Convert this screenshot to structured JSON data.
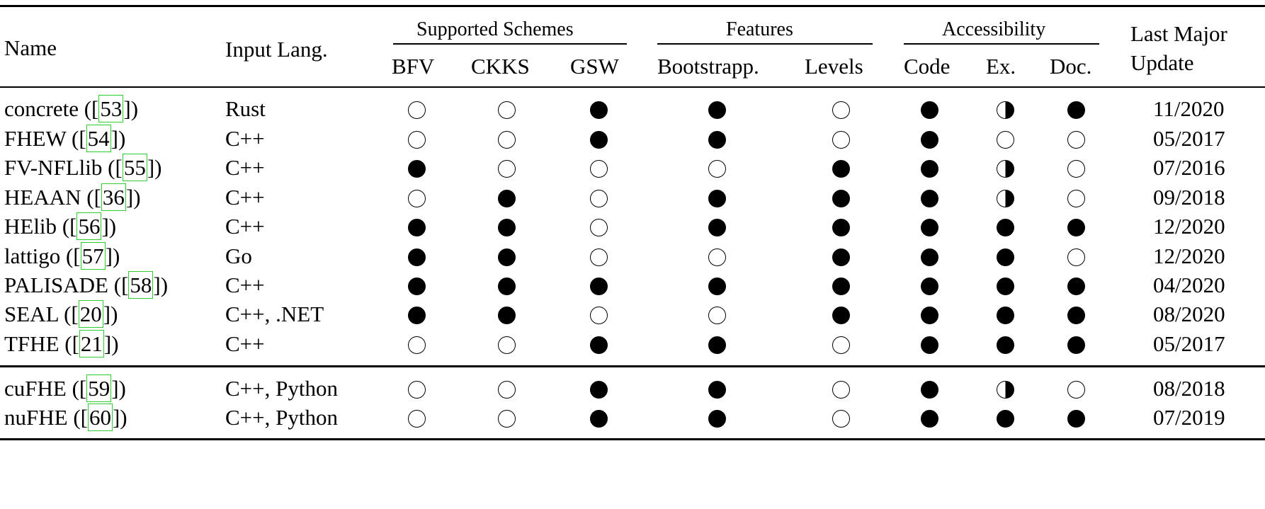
{
  "header": {
    "name": "Name",
    "input_lang": "Input Lang.",
    "groups": [
      "Supported Schemes",
      "Features",
      "Accessibility"
    ],
    "sub": [
      "BFV",
      "CKKS",
      "GSW",
      "Bootstrapp.",
      "Levels",
      "Code",
      "Ex.",
      "Doc."
    ],
    "last_major_1": "Last Major",
    "last_major_2": "Update"
  },
  "rows": [
    {
      "name": "concrete",
      "ref": "53",
      "lang": "Rust",
      "marks": [
        "empty",
        "empty",
        "full",
        "full",
        "empty",
        "full",
        "half",
        "full"
      ],
      "update": "11/2020"
    },
    {
      "name": "FHEW",
      "ref": "54",
      "lang": "C++",
      "marks": [
        "empty",
        "empty",
        "full",
        "full",
        "empty",
        "full",
        "empty",
        "empty"
      ],
      "update": "05/2017"
    },
    {
      "name": "FV-NFLlib",
      "ref": "55",
      "lang": "C++",
      "marks": [
        "full",
        "empty",
        "empty",
        "empty",
        "full",
        "full",
        "half",
        "empty"
      ],
      "update": "07/2016"
    },
    {
      "name": "HEAAN",
      "ref": "36",
      "lang": "C++",
      "marks": [
        "empty",
        "full",
        "empty",
        "full",
        "full",
        "full",
        "half",
        "empty"
      ],
      "update": "09/2018"
    },
    {
      "name": "HElib",
      "ref": "56",
      "lang": "C++",
      "marks": [
        "full",
        "full",
        "empty",
        "full",
        "full",
        "full",
        "full",
        "full"
      ],
      "update": "12/2020"
    },
    {
      "name": "lattigo",
      "ref": "57",
      "lang": "Go",
      "marks": [
        "full",
        "full",
        "empty",
        "empty",
        "full",
        "full",
        "full",
        "empty"
      ],
      "update": "12/2020"
    },
    {
      "name": "PALISADE",
      "ref": "58",
      "lang": "C++",
      "marks": [
        "full",
        "full",
        "full",
        "full",
        "full",
        "full",
        "full",
        "full"
      ],
      "update": "04/2020"
    },
    {
      "name": "SEAL",
      "ref": "20",
      "lang": "C++, .NET",
      "marks": [
        "full",
        "full",
        "empty",
        "empty",
        "full",
        "full",
        "full",
        "full"
      ],
      "update": "08/2020"
    },
    {
      "name": "TFHE",
      "ref": "21",
      "lang": "C++",
      "marks": [
        "empty",
        "empty",
        "full",
        "full",
        "empty",
        "full",
        "full",
        "full"
      ],
      "update": "05/2017"
    },
    {
      "name": "cuFHE",
      "ref": "59",
      "lang": "C++, Python",
      "marks": [
        "empty",
        "empty",
        "full",
        "full",
        "empty",
        "full",
        "half",
        "empty"
      ],
      "update": "08/2018"
    },
    {
      "name": "nuFHE",
      "ref": "60",
      "lang": "C++, Python",
      "marks": [
        "empty",
        "empty",
        "full",
        "full",
        "empty",
        "full",
        "full",
        "full"
      ],
      "update": "07/2019"
    }
  ]
}
